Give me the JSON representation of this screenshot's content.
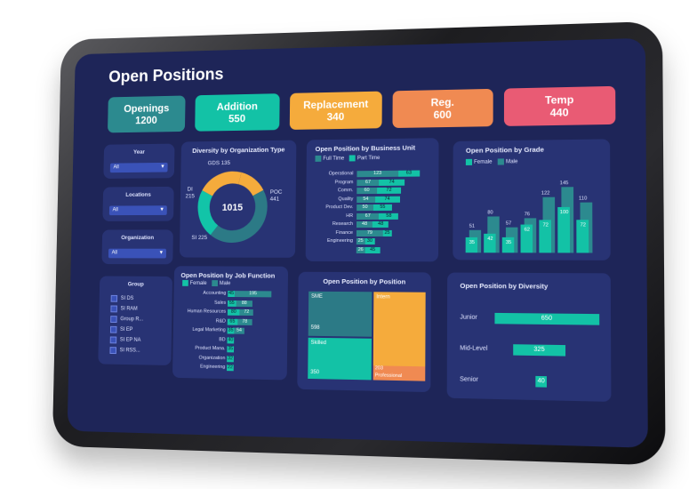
{
  "title": "Open Positions",
  "kpis": {
    "openings": {
      "label": "Openings",
      "value": "1200"
    },
    "addition": {
      "label": "Addition",
      "value": "550"
    },
    "replacement": {
      "label": "Replacement",
      "value": "340"
    },
    "reg": {
      "label": "Reg.",
      "value": "600"
    },
    "temp": {
      "label": "Temp",
      "value": "440"
    }
  },
  "filters": {
    "year": {
      "label": "Year",
      "value": "All"
    },
    "locations": {
      "label": "Locations",
      "value": "All"
    },
    "organization": {
      "label": "Organization",
      "value": "All"
    }
  },
  "group": {
    "label": "Group",
    "items": [
      "SI DS",
      "SI RAM",
      "Group R...",
      "SI EP",
      "SI EP NA",
      "SI RSS..."
    ]
  },
  "diversity_org": {
    "title": "Diversity by Organization Type",
    "total": "1015",
    "labels": {
      "gds": "GDS 135",
      "poc1": "POC",
      "poc2": "441",
      "di1": "DI",
      "di2": "215",
      "si": "SI 225"
    },
    "slices": [
      {
        "name": "GDS",
        "value": 135,
        "color": "#f5ab3c"
      },
      {
        "name": "POC",
        "value": 441,
        "color": "#2c7a86"
      },
      {
        "name": "SI",
        "value": 225,
        "color": "#12c4a8"
      },
      {
        "name": "DI",
        "value": 215,
        "color": "#f5ab3c"
      }
    ]
  },
  "business_unit": {
    "title": "Open Position by Business Unit",
    "legend": [
      "Full Time",
      "Part Time"
    ],
    "colors": [
      "#2c8a8f",
      "#13c2a6"
    ],
    "rows": [
      {
        "label": "Operational",
        "v1": 123,
        "v2": 63
      },
      {
        "label": "Program",
        "v1": 67,
        "v2": 74
      },
      {
        "label": "Comm.",
        "v1": 60,
        "v2": 72
      },
      {
        "label": "Quality",
        "v1": 54,
        "v2": 74
      },
      {
        "label": "Product Dev.",
        "v1": 50,
        "v2": 55
      },
      {
        "label": "HR",
        "v1": 67,
        "v2": 58
      },
      {
        "label": "Research",
        "v1": 48,
        "v2": 48
      },
      {
        "label": "Finance",
        "v1": 79,
        "v2": 25
      },
      {
        "label": "Engineering",
        "v1": 25,
        "v2": 30
      },
      {
        "label": "",
        "v1": 26,
        "v2": 45
      }
    ]
  },
  "grade": {
    "title": "Open Position by Grade",
    "legend": [
      "Female",
      "Male"
    ],
    "colors": [
      "#13c2a6",
      "#2c8a8f"
    ],
    "pairs": [
      {
        "female": 35,
        "male": 51
      },
      {
        "female": 42,
        "male": 80
      },
      {
        "female": 35,
        "male": 57
      },
      {
        "female": 62,
        "male": 76
      },
      {
        "female": 72,
        "male": 122
      },
      {
        "female": 100,
        "male": 145
      },
      {
        "female": 72,
        "male": 110
      }
    ]
  },
  "job_function": {
    "title": "Open Position by Job Function",
    "legend": [
      "Female",
      "Male"
    ],
    "colors": [
      "#13c2a6",
      "#2c8a8f"
    ],
    "rows": [
      {
        "label": "Accounting",
        "v1": 45,
        "v2": 195
      },
      {
        "label": "Sales",
        "v1": 55,
        "v2": 88
      },
      {
        "label": "Human Resources",
        "v1": 80,
        "v2": 72
      },
      {
        "label": "R&D",
        "v1": 65,
        "v2": 78
      },
      {
        "label": "Legal Marketing",
        "v1": 35,
        "v2": 54
      },
      {
        "label": "BD",
        "v1": 40,
        "v2": ""
      },
      {
        "label": "Product Mana.",
        "v1": 35,
        "v2": ""
      },
      {
        "label": "Organization",
        "v1": 32,
        "v2": ""
      },
      {
        "label": "Engineering",
        "v1": 22,
        "v2": ""
      }
    ]
  },
  "position": {
    "title": "Open Position by Position",
    "cells": [
      {
        "label": "SME",
        "value": "598",
        "color": "#2c7a86"
      },
      {
        "label": "Intern",
        "value": "",
        "color": "#f5ab3c"
      },
      {
        "label": "Skilled",
        "value": "350",
        "color": "#13c2a6"
      },
      {
        "label": "Professional",
        "value": "203",
        "color": "#f08a52"
      }
    ]
  },
  "diversity": {
    "title": "Open Position by Diversity",
    "rows": [
      {
        "label": "Junior",
        "value": 650
      },
      {
        "label": "Mid-Level",
        "value": 325
      },
      {
        "label": "Senior",
        "value": 40
      }
    ]
  }
}
